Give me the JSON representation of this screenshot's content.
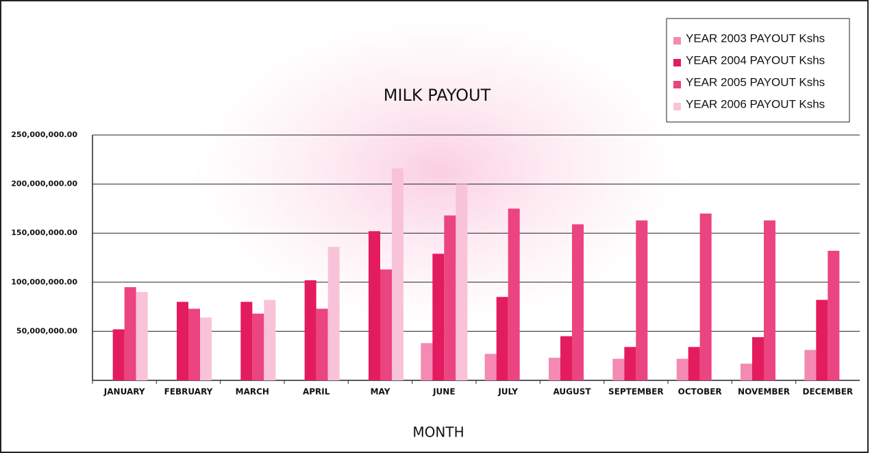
{
  "chart_data": {
    "type": "bar",
    "title": "MILK PAYOUT",
    "x_label": "MONTH",
    "categories": [
      "JANUARY",
      "FEBRUARY",
      "MARCH",
      "APRIL",
      "MAY",
      "JUNE",
      "JULY",
      "AUGUST",
      "SEPTEMBER",
      "OCTOBER",
      "NOVEMBER",
      "DECEMBER"
    ],
    "series": [
      {
        "name": "YEAR 2003 PAYOUT Kshs",
        "color": "#f48ab4",
        "values": [
          null,
          null,
          null,
          null,
          null,
          38000000,
          27000000,
          23000000,
          22000000,
          22000000,
          17000000,
          31000000
        ]
      },
      {
        "name": "YEAR 2004 PAYOUT Kshs",
        "color": "#e31b5f",
        "values": [
          52000000,
          80000000,
          80000000,
          102000000,
          152000000,
          129000000,
          85000000,
          45000000,
          34000000,
          34000000,
          44000000,
          82000000
        ]
      },
      {
        "name": "YEAR 2005 PAYOUT Kshs",
        "color": "#eb4481",
        "values": [
          95000000,
          73000000,
          68000000,
          73000000,
          113000000,
          168000000,
          175000000,
          159000000,
          163000000,
          170000000,
          163000000,
          132000000
        ]
      },
      {
        "name": "YEAR 2006 PAYOUT Kshs",
        "color": "#f8c3d8",
        "values": [
          90000000,
          64000000,
          82000000,
          136000000,
          216000000,
          200000000,
          null,
          null,
          null,
          null,
          null,
          null
        ]
      }
    ],
    "ylim": [
      0,
      250000000
    ],
    "yticks": [
      {
        "value": 50000000,
        "label": "50,000,000.00"
      },
      {
        "value": 100000000,
        "label": "100,000,000.00"
      },
      {
        "value": 150000000,
        "label": "150,000,000.00"
      },
      {
        "value": 200000000,
        "label": "200,000,000.00"
      },
      {
        "value": 250000000,
        "label": "250,000,000.00"
      }
    ],
    "grid": true,
    "legend": "upper-right"
  }
}
